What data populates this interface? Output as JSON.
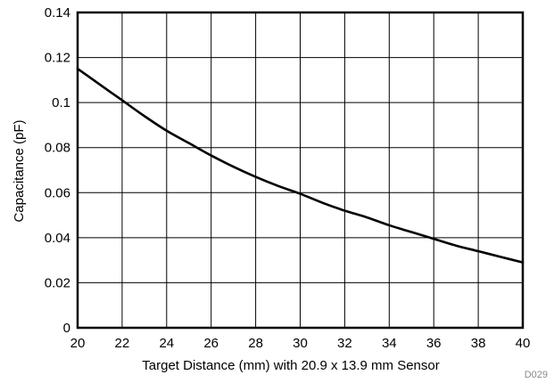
{
  "chart_data": {
    "type": "line",
    "title": "",
    "xlabel": "Target Distance (mm) with 20.9 x 13.9 mm Sensor",
    "ylabel": "Capacitance (pF)",
    "xlim": [
      20,
      40
    ],
    "ylim": [
      0,
      0.14
    ],
    "xticks": [
      "20",
      "22",
      "24",
      "26",
      "28",
      "30",
      "32",
      "34",
      "36",
      "38",
      "40"
    ],
    "yticks": [
      "0",
      "0.02",
      "0.04",
      "0.06",
      "0.08",
      "0.1",
      "0.12",
      "0.14"
    ],
    "grid": true,
    "series": [
      {
        "color": "#000000",
        "x": [
          20,
          21,
          22,
          23,
          24,
          25,
          26,
          27,
          28,
          29,
          30,
          31,
          32,
          33,
          34,
          35,
          36,
          37,
          38,
          39,
          40
        ],
        "y": [
          0.115,
          0.108,
          0.101,
          0.094,
          0.0875,
          0.082,
          0.0765,
          0.0715,
          0.067,
          0.063,
          0.0595,
          0.0555,
          0.052,
          0.049,
          0.0455,
          0.0425,
          0.0395,
          0.0365,
          0.034,
          0.0315,
          0.029
        ]
      }
    ],
    "figure_code": "D029"
  }
}
